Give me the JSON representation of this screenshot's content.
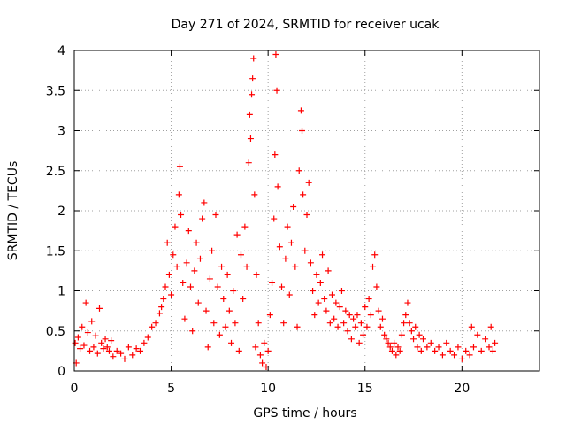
{
  "chart_data": {
    "type": "scatter",
    "title": "Day 271 of 2024, SRMTID for receiver ucak",
    "xlabel": "GPS time / hours",
    "ylabel": "SRMTID / TECUs",
    "xlim": [
      0,
      24
    ],
    "ylim": [
      0,
      4
    ],
    "xticks": [
      "0",
      "5",
      "10",
      "15",
      "20"
    ],
    "yticks": [
      "0",
      "0.5",
      "1",
      "1.5",
      "2",
      "2.5",
      "3",
      "3.5",
      "4"
    ],
    "grid": true,
    "marker": "+",
    "series_color": "#ff0000",
    "series": [
      {
        "name": "SRMTID",
        "points": [
          [
            0.05,
            0.35
          ],
          [
            0.1,
            0.1
          ],
          [
            0.2,
            0.42
          ],
          [
            0.3,
            0.28
          ],
          [
            0.4,
            0.55
          ],
          [
            0.5,
            0.32
          ],
          [
            0.6,
            0.85
          ],
          [
            0.7,
            0.48
          ],
          [
            0.8,
            0.25
          ],
          [
            0.9,
            0.62
          ],
          [
            1.0,
            0.3
          ],
          [
            1.1,
            0.44
          ],
          [
            1.2,
            0.22
          ],
          [
            1.3,
            0.78
          ],
          [
            1.4,
            0.35
          ],
          [
            1.5,
            0.28
          ],
          [
            1.6,
            0.4
          ],
          [
            1.7,
            0.3
          ],
          [
            1.8,
            0.25
          ],
          [
            1.9,
            0.38
          ],
          [
            2.0,
            0.18
          ],
          [
            2.2,
            0.25
          ],
          [
            2.4,
            0.22
          ],
          [
            2.6,
            0.15
          ],
          [
            2.8,
            0.3
          ],
          [
            3.0,
            0.2
          ],
          [
            3.2,
            0.28
          ],
          [
            3.4,
            0.25
          ],
          [
            3.6,
            0.35
          ],
          [
            3.8,
            0.42
          ],
          [
            4.0,
            0.55
          ],
          [
            4.2,
            0.6
          ],
          [
            4.4,
            0.72
          ],
          [
            4.5,
            0.8
          ],
          [
            4.6,
            0.9
          ],
          [
            4.7,
            1.05
          ],
          [
            4.8,
            1.6
          ],
          [
            4.9,
            1.2
          ],
          [
            5.0,
            0.95
          ],
          [
            5.1,
            1.45
          ],
          [
            5.2,
            1.8
          ],
          [
            5.3,
            1.3
          ],
          [
            5.4,
            2.2
          ],
          [
            5.45,
            2.55
          ],
          [
            5.5,
            1.95
          ],
          [
            5.6,
            1.1
          ],
          [
            5.7,
            0.65
          ],
          [
            5.8,
            1.35
          ],
          [
            5.9,
            1.75
          ],
          [
            6.0,
            1.05
          ],
          [
            6.1,
            0.5
          ],
          [
            6.2,
            1.25
          ],
          [
            6.3,
            1.6
          ],
          [
            6.4,
            0.85
          ],
          [
            6.5,
            1.4
          ],
          [
            6.6,
            1.9
          ],
          [
            6.7,
            2.1
          ],
          [
            6.8,
            0.75
          ],
          [
            6.9,
            0.3
          ],
          [
            7.0,
            1.15
          ],
          [
            7.1,
            1.5
          ],
          [
            7.2,
            0.6
          ],
          [
            7.3,
            1.95
          ],
          [
            7.4,
            1.05
          ],
          [
            7.5,
            0.45
          ],
          [
            7.6,
            1.3
          ],
          [
            7.7,
            0.9
          ],
          [
            7.8,
            0.55
          ],
          [
            7.9,
            1.2
          ],
          [
            8.0,
            0.75
          ],
          [
            8.1,
            0.35
          ],
          [
            8.2,
            1.0
          ],
          [
            8.3,
            0.6
          ],
          [
            8.4,
            1.7
          ],
          [
            8.5,
            0.25
          ],
          [
            8.6,
            1.45
          ],
          [
            8.7,
            0.9
          ],
          [
            8.8,
            1.8
          ],
          [
            8.9,
            1.3
          ],
          [
            9.0,
            2.6
          ],
          [
            9.05,
            3.2
          ],
          [
            9.1,
            2.9
          ],
          [
            9.15,
            3.45
          ],
          [
            9.2,
            3.65
          ],
          [
            9.25,
            3.9
          ],
          [
            9.3,
            2.2
          ],
          [
            9.35,
            0.3
          ],
          [
            9.4,
            1.2
          ],
          [
            9.5,
            0.6
          ],
          [
            9.6,
            0.2
          ],
          [
            9.7,
            0.1
          ],
          [
            9.8,
            0.35
          ],
          [
            9.9,
            0.05
          ],
          [
            10.0,
            0.25
          ],
          [
            10.1,
            0.7
          ],
          [
            10.2,
            1.1
          ],
          [
            10.3,
            1.9
          ],
          [
            10.35,
            2.7
          ],
          [
            10.4,
            3.95
          ],
          [
            10.45,
            3.5
          ],
          [
            10.5,
            2.3
          ],
          [
            10.6,
            1.55
          ],
          [
            10.7,
            1.05
          ],
          [
            10.8,
            0.6
          ],
          [
            10.9,
            1.4
          ],
          [
            11.0,
            1.8
          ],
          [
            11.1,
            0.95
          ],
          [
            11.2,
            1.6
          ],
          [
            11.3,
            2.05
          ],
          [
            11.4,
            1.3
          ],
          [
            11.5,
            0.55
          ],
          [
            11.6,
            2.5
          ],
          [
            11.7,
            3.25
          ],
          [
            11.75,
            3.0
          ],
          [
            11.8,
            2.2
          ],
          [
            11.9,
            1.5
          ],
          [
            12.0,
            1.95
          ],
          [
            12.1,
            2.35
          ],
          [
            12.2,
            1.35
          ],
          [
            12.3,
            1.0
          ],
          [
            12.4,
            0.7
          ],
          [
            12.5,
            1.2
          ],
          [
            12.6,
            0.85
          ],
          [
            12.7,
            1.1
          ],
          [
            12.8,
            1.45
          ],
          [
            12.9,
            0.9
          ],
          [
            13.0,
            0.75
          ],
          [
            13.1,
            1.25
          ],
          [
            13.2,
            0.6
          ],
          [
            13.3,
            0.95
          ],
          [
            13.4,
            0.65
          ],
          [
            13.5,
            0.85
          ],
          [
            13.6,
            0.55
          ],
          [
            13.7,
            0.8
          ],
          [
            13.8,
            1.0
          ],
          [
            13.9,
            0.6
          ],
          [
            14.0,
            0.75
          ],
          [
            14.1,
            0.5
          ],
          [
            14.2,
            0.7
          ],
          [
            14.3,
            0.4
          ],
          [
            14.4,
            0.65
          ],
          [
            14.5,
            0.55
          ],
          [
            14.6,
            0.7
          ],
          [
            14.7,
            0.35
          ],
          [
            14.8,
            0.6
          ],
          [
            14.9,
            0.45
          ],
          [
            15.0,
            0.8
          ],
          [
            15.1,
            0.55
          ],
          [
            15.2,
            0.9
          ],
          [
            15.3,
            0.7
          ],
          [
            15.4,
            1.3
          ],
          [
            15.5,
            1.45
          ],
          [
            15.6,
            1.05
          ],
          [
            15.7,
            0.75
          ],
          [
            15.8,
            0.55
          ],
          [
            15.9,
            0.65
          ],
          [
            16.0,
            0.45
          ],
          [
            16.1,
            0.4
          ],
          [
            16.2,
            0.35
          ],
          [
            16.3,
            0.3
          ],
          [
            16.4,
            0.25
          ],
          [
            16.5,
            0.35
          ],
          [
            16.6,
            0.2
          ],
          [
            16.7,
            0.3
          ],
          [
            16.8,
            0.25
          ],
          [
            16.9,
            0.45
          ],
          [
            17.0,
            0.6
          ],
          [
            17.1,
            0.7
          ],
          [
            17.2,
            0.85
          ],
          [
            17.3,
            0.6
          ],
          [
            17.4,
            0.5
          ],
          [
            17.5,
            0.4
          ],
          [
            17.6,
            0.55
          ],
          [
            17.7,
            0.3
          ],
          [
            17.8,
            0.45
          ],
          [
            17.9,
            0.25
          ],
          [
            18.0,
            0.4
          ],
          [
            18.2,
            0.3
          ],
          [
            18.4,
            0.35
          ],
          [
            18.6,
            0.25
          ],
          [
            18.8,
            0.3
          ],
          [
            19.0,
            0.2
          ],
          [
            19.2,
            0.35
          ],
          [
            19.4,
            0.25
          ],
          [
            19.6,
            0.2
          ],
          [
            19.8,
            0.3
          ],
          [
            20.0,
            0.15
          ],
          [
            20.2,
            0.25
          ],
          [
            20.4,
            0.2
          ],
          [
            20.5,
            0.55
          ],
          [
            20.6,
            0.3
          ],
          [
            20.8,
            0.45
          ],
          [
            21.0,
            0.25
          ],
          [
            21.2,
            0.4
          ],
          [
            21.4,
            0.3
          ],
          [
            21.5,
            0.55
          ],
          [
            21.6,
            0.25
          ],
          [
            21.7,
            0.35
          ]
        ]
      }
    ]
  }
}
